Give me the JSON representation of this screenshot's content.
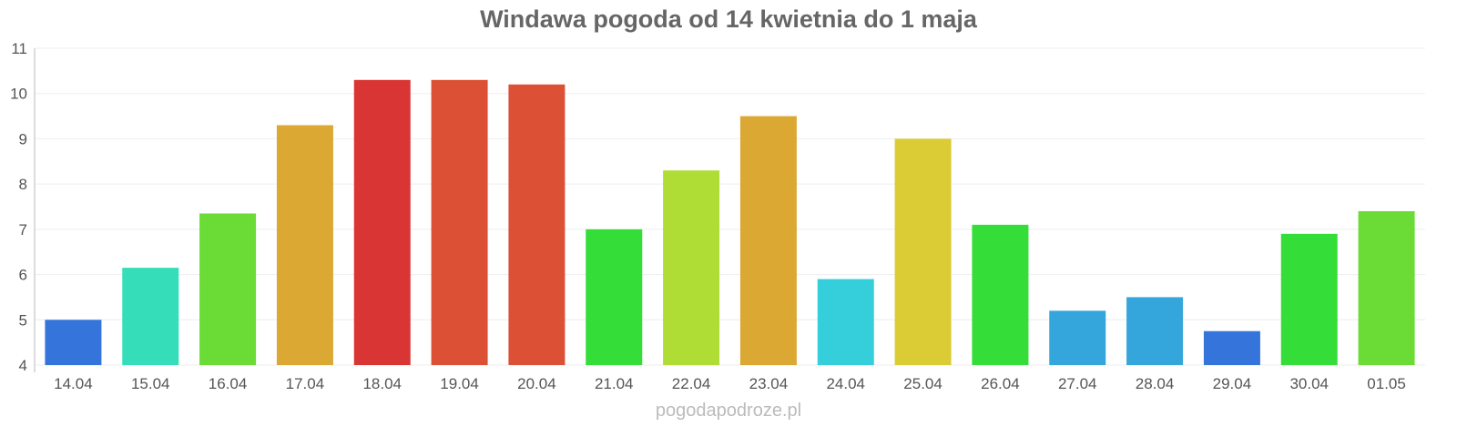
{
  "chart_data": {
    "type": "bar",
    "title": "Windawa pogoda od 14 kwietnia do 1 maja",
    "xlabel": "",
    "ylabel": "",
    "ylim": [
      4,
      11
    ],
    "yticks": [
      "4",
      "5",
      "6",
      "7",
      "8",
      "9",
      "10",
      "11"
    ],
    "grid": true,
    "categories": [
      "14.04",
      "15.04",
      "16.04",
      "17.04",
      "18.04",
      "19.04",
      "20.04",
      "21.04",
      "22.04",
      "23.04",
      "24.04",
      "25.04",
      "26.04",
      "27.04",
      "28.04",
      "29.04",
      "30.04",
      "01.05"
    ],
    "values": [
      5.0,
      6.15,
      7.35,
      9.3,
      10.3,
      10.3,
      10.2,
      7.0,
      8.3,
      9.5,
      5.9,
      9.0,
      7.1,
      5.2,
      5.5,
      4.75,
      6.9,
      7.4
    ],
    "colors": [
      "#3474db",
      "#35ddb9",
      "#6bdc36",
      "#dba834",
      "#da3535",
      "#dc5135",
      "#dc5135",
      "#35dd38",
      "#afdd35",
      "#dba834",
      "#35cfdb",
      "#dbcb35",
      "#35dd38",
      "#35a6db",
      "#35a6db",
      "#3474db",
      "#35dd38",
      "#6bdc36"
    ]
  },
  "footer": "pogodapodroze.pl"
}
